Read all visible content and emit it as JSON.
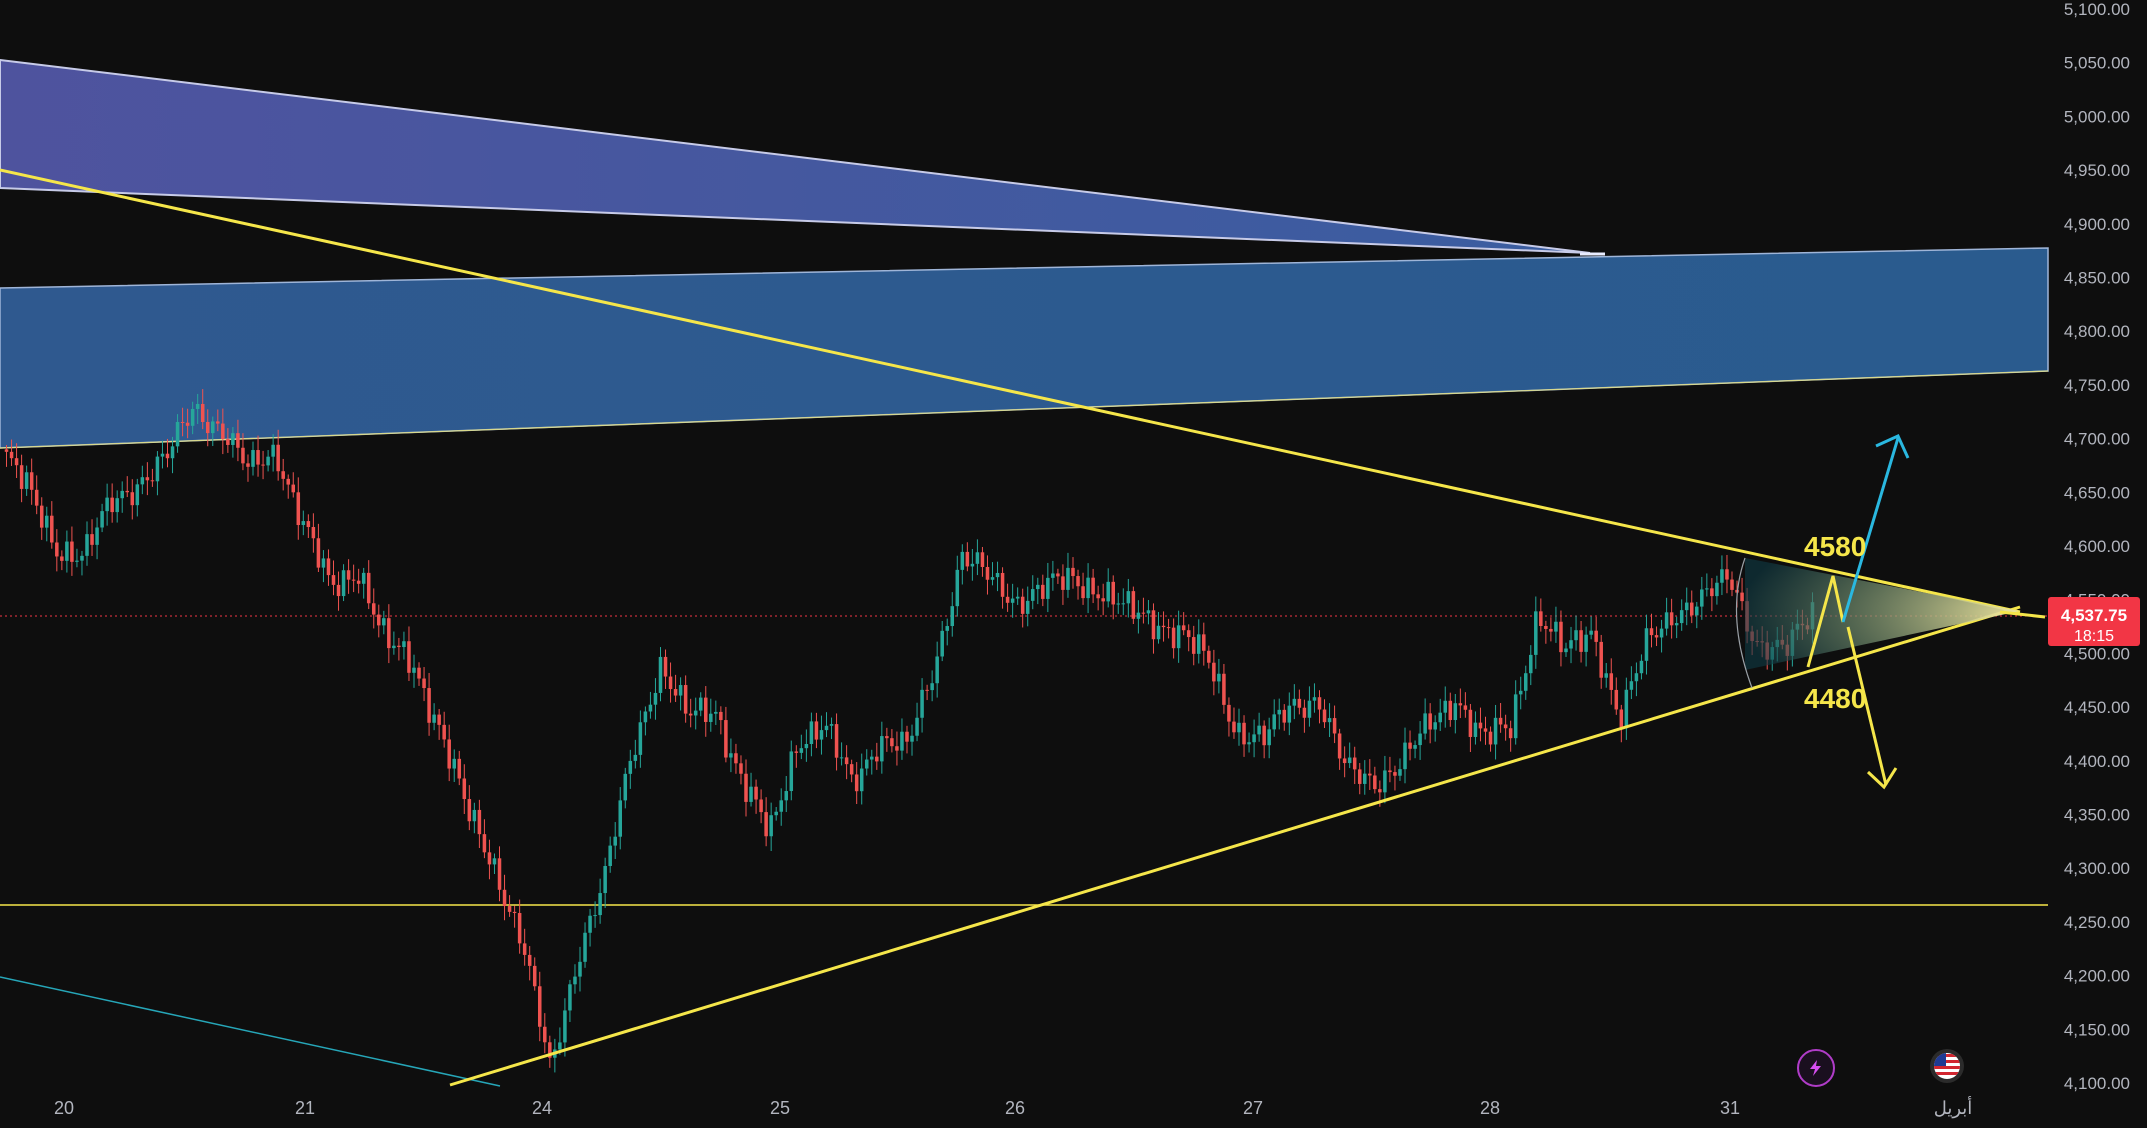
{
  "chart_data": {
    "type": "candlestick",
    "instrument_currency_note": "",
    "ylim": [
      4100,
      5100
    ],
    "y_ticks": [
      "5,100.00",
      "5,050.00",
      "5,000.00",
      "4,950.00",
      "4,900.00",
      "4,850.00",
      "4,800.00",
      "4,750.00",
      "4,700.00",
      "4,650.00",
      "4,600.00",
      "4,550.00",
      "4,500.00",
      "4,450.00",
      "4,400.00",
      "4,350.00",
      "4,300.00",
      "4,250.00",
      "4,200.00",
      "4,150.00",
      "4,100.00"
    ],
    "x_ticks": [
      "20",
      "21",
      "24",
      "25",
      "26",
      "27",
      "28",
      "31",
      "أبريل"
    ],
    "grid": false,
    "last_price": "4,537.75",
    "countdown": "18:15",
    "candles_close_path": [
      {
        "t": 0,
        "p": 4690
      },
      {
        "t": 1,
        "p": 4650
      },
      {
        "t": 2,
        "p": 4600
      },
      {
        "t": 3,
        "p": 4590
      },
      {
        "t": 4,
        "p": 4640
      },
      {
        "t": 5,
        "p": 4660
      },
      {
        "t": 6,
        "p": 4680
      },
      {
        "t": 7,
        "p": 4730
      },
      {
        "t": 8,
        "p": 4710
      },
      {
        "t": 9,
        "p": 4670
      },
      {
        "t": 10,
        "p": 4690
      },
      {
        "t": 11,
        "p": 4620
      },
      {
        "t": 12,
        "p": 4560
      },
      {
        "t": 13,
        "p": 4580
      },
      {
        "t": 14,
        "p": 4510
      },
      {
        "t": 15,
        "p": 4490
      },
      {
        "t": 16,
        "p": 4430
      },
      {
        "t": 17,
        "p": 4350
      },
      {
        "t": 18,
        "p": 4300
      },
      {
        "t": 19,
        "p": 4230
      },
      {
        "t": 20,
        "p": 4110
      },
      {
        "t": 21,
        "p": 4220
      },
      {
        "t": 22,
        "p": 4290
      },
      {
        "t": 23,
        "p": 4410
      },
      {
        "t": 24,
        "p": 4490
      },
      {
        "t": 25,
        "p": 4440
      },
      {
        "t": 26,
        "p": 4450
      },
      {
        "t": 27,
        "p": 4380
      },
      {
        "t": 28,
        "p": 4330
      },
      {
        "t": 29,
        "p": 4420
      },
      {
        "t": 30,
        "p": 4430
      },
      {
        "t": 31,
        "p": 4380
      },
      {
        "t": 32,
        "p": 4420
      },
      {
        "t": 33,
        "p": 4410
      },
      {
        "t": 34,
        "p": 4490
      },
      {
        "t": 35,
        "p": 4590
      },
      {
        "t": 36,
        "p": 4570
      },
      {
        "t": 37,
        "p": 4550
      },
      {
        "t": 38,
        "p": 4560
      },
      {
        "t": 39,
        "p": 4570
      },
      {
        "t": 40,
        "p": 4560
      },
      {
        "t": 41,
        "p": 4540
      },
      {
        "t": 42,
        "p": 4530
      },
      {
        "t": 43,
        "p": 4520
      },
      {
        "t": 44,
        "p": 4490
      },
      {
        "t": 45,
        "p": 4430
      },
      {
        "t": 46,
        "p": 4420
      },
      {
        "t": 47,
        "p": 4450
      },
      {
        "t": 48,
        "p": 4460
      },
      {
        "t": 49,
        "p": 4390
      },
      {
        "t": 50,
        "p": 4380
      },
      {
        "t": 51,
        "p": 4400
      },
      {
        "t": 52,
        "p": 4430
      },
      {
        "t": 53,
        "p": 4460
      },
      {
        "t": 54,
        "p": 4420
      },
      {
        "t": 55,
        "p": 4430
      },
      {
        "t": 56,
        "p": 4540
      },
      {
        "t": 57,
        "p": 4500
      },
      {
        "t": 58,
        "p": 4520
      },
      {
        "t": 59,
        "p": 4440
      },
      {
        "t": 60,
        "p": 4510
      },
      {
        "t": 61,
        "p": 4540
      },
      {
        "t": 62,
        "p": 4550
      },
      {
        "t": 63,
        "p": 4570
      },
      {
        "t": 64,
        "p": 4510
      },
      {
        "t": 65,
        "p": 4500
      },
      {
        "t": 66,
        "p": 4540
      }
    ]
  },
  "annotations": {
    "upper_target": "4580",
    "lower_target": "4480"
  },
  "colors": {
    "background": "#0e0e0e",
    "up_candle": "#26a69a",
    "down_candle": "#ef5350",
    "trendline": "#f5e64a",
    "price_tag": "#f23645",
    "up_arrow": "#2ab8e0",
    "down_arrow": "#f5e64a"
  },
  "icons": {
    "lightning": "lightning-icon",
    "flag": "us-flag-icon"
  }
}
